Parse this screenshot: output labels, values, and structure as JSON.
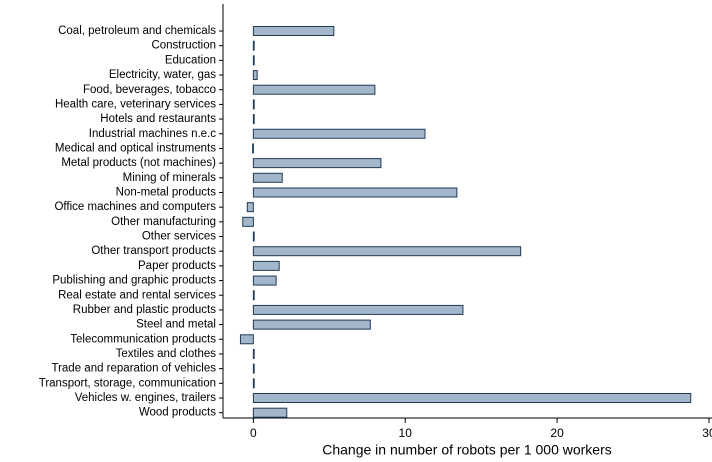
{
  "chart_data": {
    "type": "barh",
    "x_label": "Change in number of robots per 1 000 workers",
    "categories": [
      "Coal, petroleum and chemicals",
      "Construction",
      "Education",
      "Electricity, water, gas",
      "Food, beverages, tobacco",
      "Health care, veterinary services",
      "Hotels and restaurants",
      "Industrial machines n.e.c",
      "Medical and optical instruments",
      "Metal products (not machines)",
      "Mining of minerals",
      "Non-metal products",
      "Office machines and computers",
      "Other manufacturing",
      "Other services",
      "Other transport products",
      "Paper products",
      "Publishing and graphic products",
      "Real estate and rental services",
      "Rubber and plastic products",
      "Steel and metal",
      "Telecommunication products",
      "Textiles and clothes",
      "Trade and reparation of vehicles",
      "Transport, storage, communication",
      "Vehicles w. engines, trailers",
      "Wood products"
    ],
    "values": [
      5.3,
      0.05,
      0.05,
      0.25,
      8.0,
      0.05,
      0.05,
      11.3,
      -0.05,
      8.4,
      1.9,
      13.4,
      -0.4,
      -0.7,
      0.05,
      17.6,
      1.7,
      1.5,
      0.05,
      13.8,
      7.7,
      -0.85,
      0.05,
      0.05,
      0.05,
      28.8,
      2.2
    ],
    "color": "#a4b6c9",
    "edge_color": "#1f3b57",
    "xlim": [
      -2,
      30.2
    ],
    "xticks": [
      0,
      10,
      20,
      30
    ]
  }
}
